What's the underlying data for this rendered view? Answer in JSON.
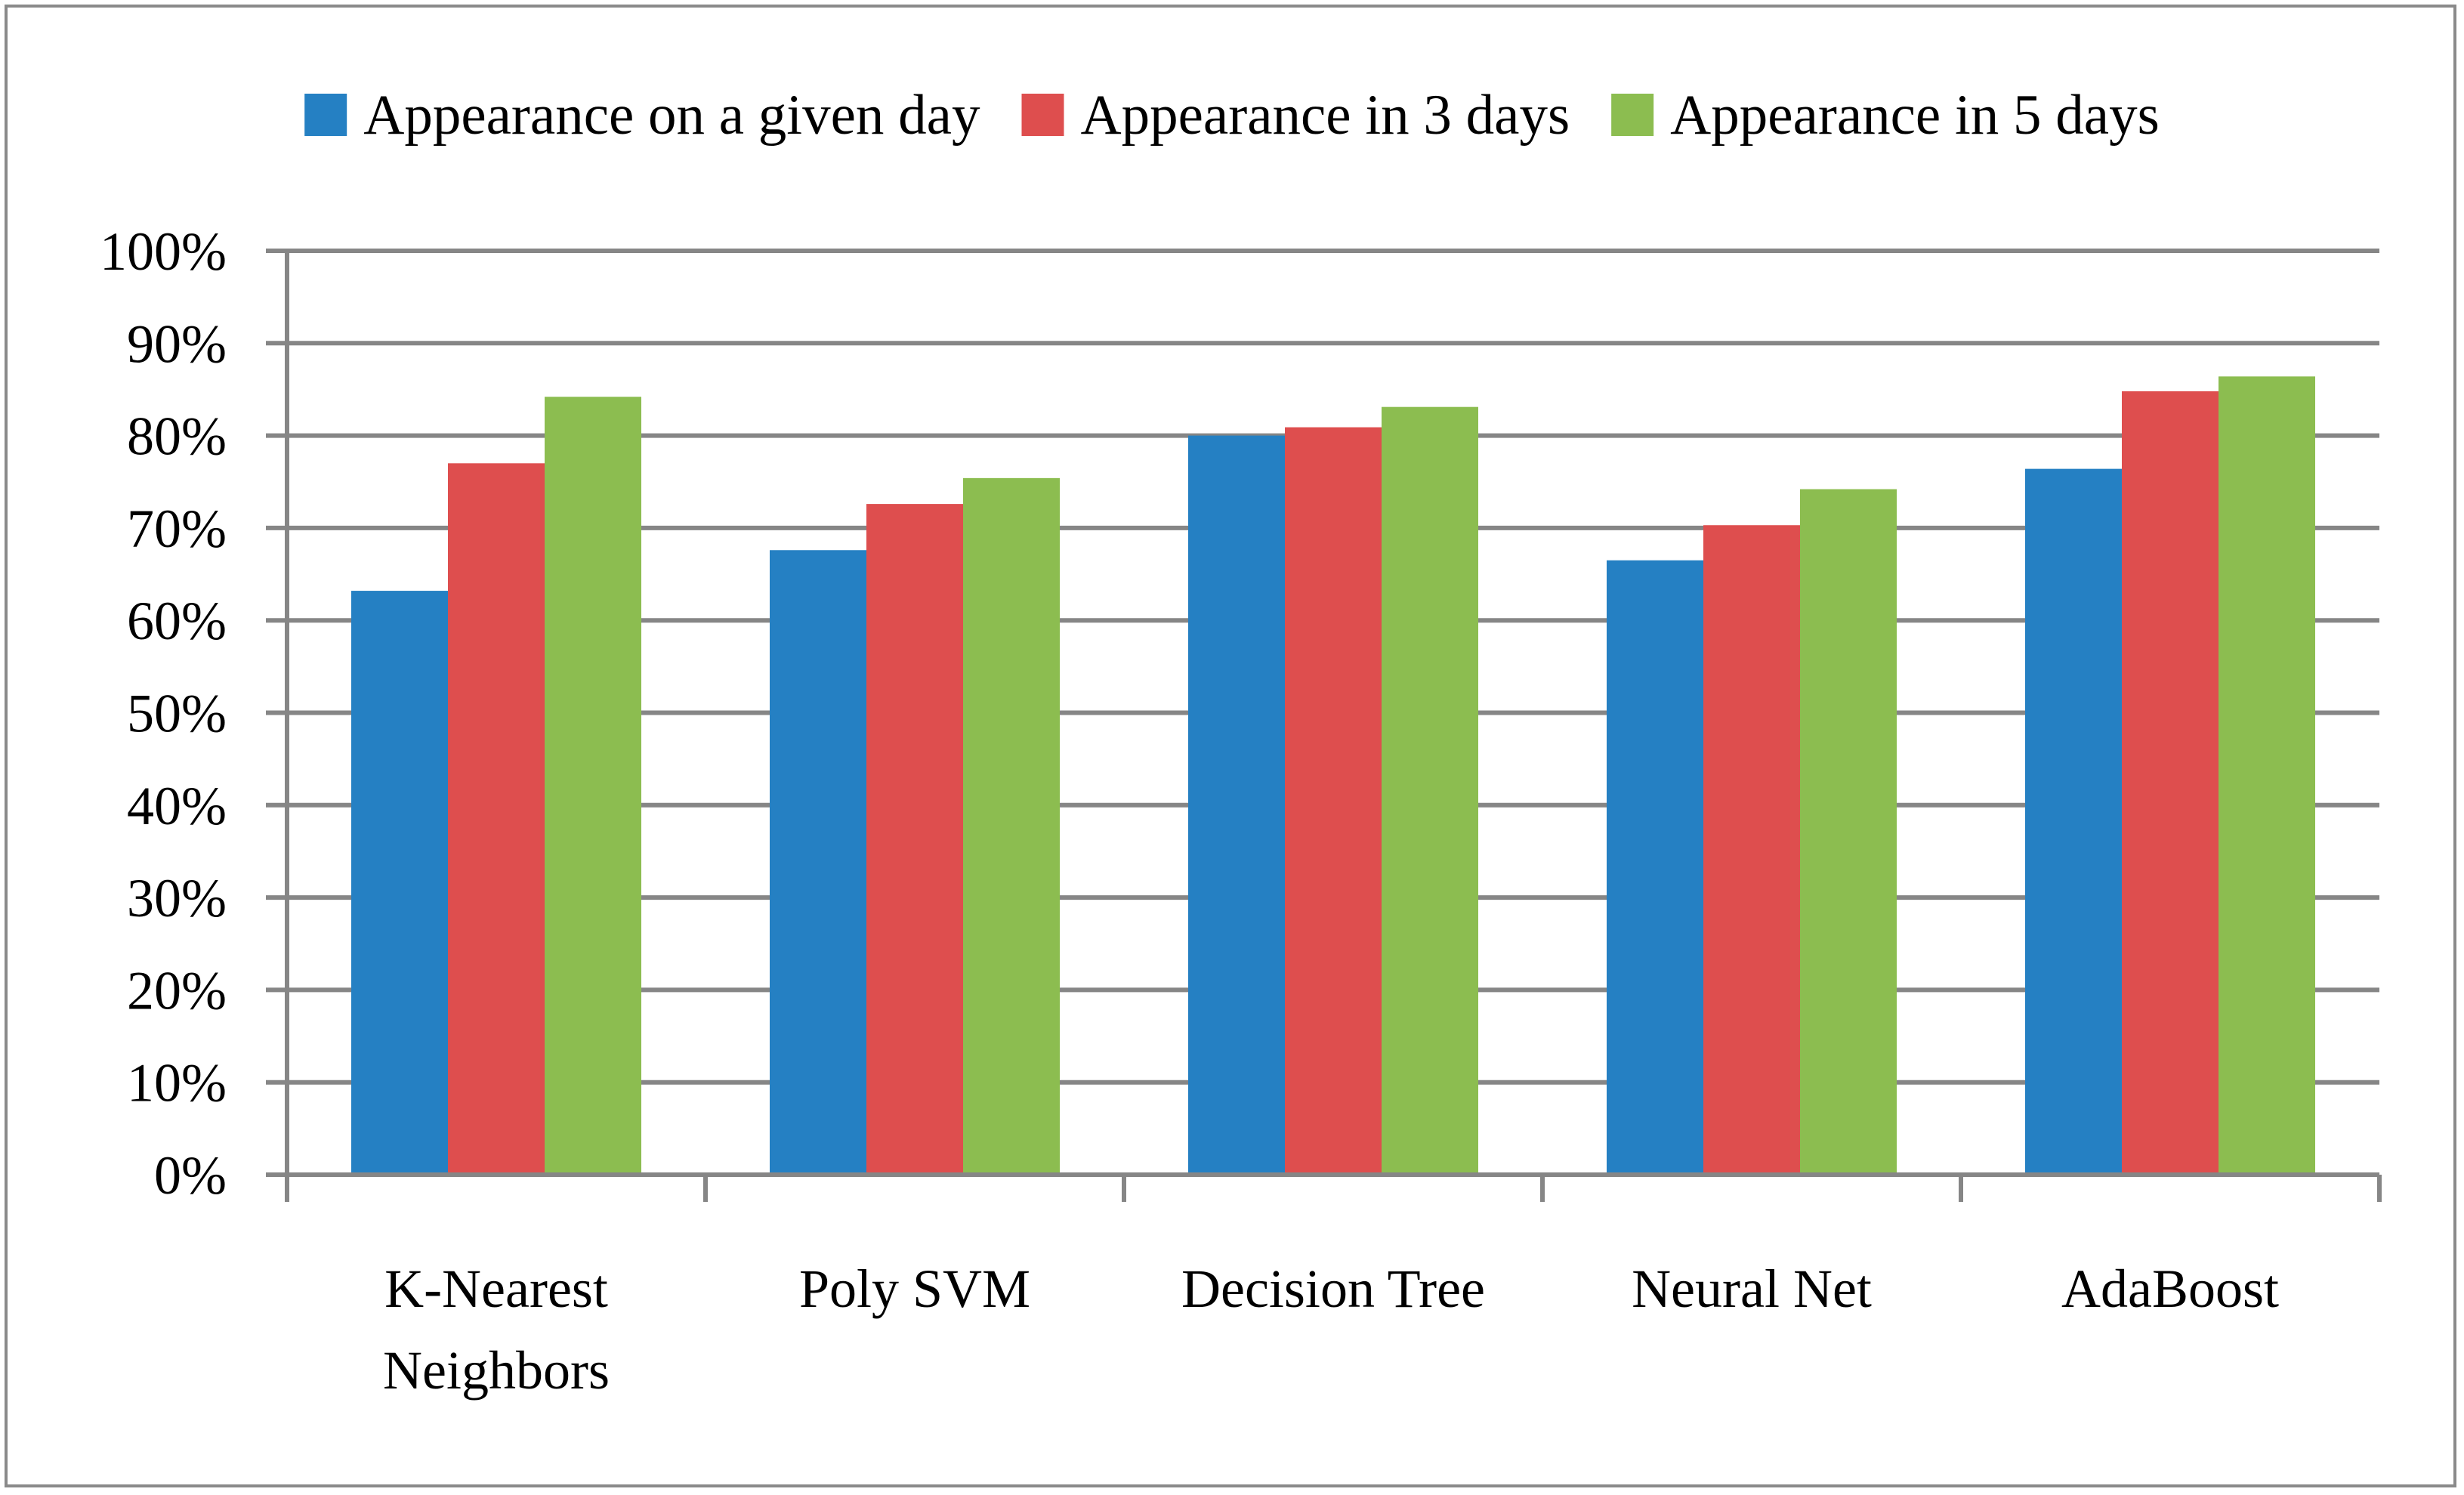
{
  "chart_data": {
    "type": "bar",
    "title": "",
    "xlabel": "",
    "ylabel": "",
    "ylim": [
      0,
      100
    ],
    "yticks": [
      0,
      10,
      20,
      30,
      40,
      50,
      60,
      70,
      80,
      90,
      100
    ],
    "ytick_labels": [
      "0%",
      "10%",
      "20%",
      "30%",
      "40%",
      "50%",
      "60%",
      "70%",
      "80%",
      "90%",
      "100%"
    ],
    "grid": true,
    "legend_position": "top",
    "categories": [
      [
        "K-Nearest",
        "Neighbors"
      ],
      [
        "Poly SVM"
      ],
      [
        "Decision Tree"
      ],
      [
        "Neural Net"
      ],
      [
        "AdaBoost"
      ]
    ],
    "series": [
      {
        "name": "Appearance on a given day",
        "color": "#2580c3",
        "values": [
          63.2,
          67.6,
          80.0,
          66.5,
          76.4
        ]
      },
      {
        "name": "Appearance in 3 days",
        "color": "#de4e4e",
        "values": [
          77.0,
          72.6,
          80.9,
          70.3,
          84.8
        ]
      },
      {
        "name": "Appearance in 5 days",
        "color": "#8cbd50",
        "values": [
          84.2,
          75.4,
          83.1,
          74.2,
          86.4
        ]
      }
    ]
  }
}
